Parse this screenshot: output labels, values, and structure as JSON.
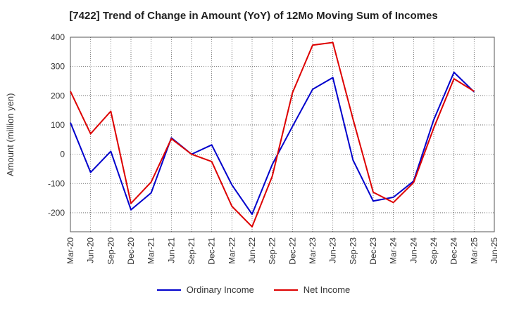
{
  "chart_data": {
    "type": "line",
    "title": "[7422]  Trend of Change in Amount (YoY) of 12Mo Moving Sum of Incomes",
    "xlabel": "",
    "ylabel": "Amount (million yen)",
    "ylim": [
      -265,
      400
    ],
    "yticks": [
      400,
      300,
      200,
      100,
      0,
      -100,
      -200
    ],
    "x": [
      "Mar-20",
      "Jun-20",
      "Sep-20",
      "Dec-20",
      "Mar-21",
      "Jun-21",
      "Sep-21",
      "Dec-21",
      "Mar-22",
      "Jun-22",
      "Sep-22",
      "Dec-22",
      "Mar-23",
      "Jun-23",
      "Sep-23",
      "Dec-23",
      "Mar-24",
      "Jun-24",
      "Sep-24",
      "Dec-24",
      "Mar-25",
      "Jun-25"
    ],
    "grid": true,
    "legend_position": "bottom",
    "series": [
      {
        "name": "Ordinary Income",
        "color": "#0000cc",
        "values": [
          108,
          -62,
          10,
          -190,
          -132,
          56,
          0,
          32,
          -105,
          -205,
          -35,
          95,
          222,
          262,
          -20,
          -160,
          -147,
          -92,
          118,
          280,
          213,
          null
        ]
      },
      {
        "name": "Net Income",
        "color": "#dd0000",
        "values": [
          215,
          70,
          147,
          -168,
          -95,
          53,
          0,
          -25,
          -178,
          -248,
          -75,
          210,
          373,
          382,
          120,
          -130,
          -165,
          -97,
          90,
          258,
          215,
          null
        ]
      }
    ]
  }
}
